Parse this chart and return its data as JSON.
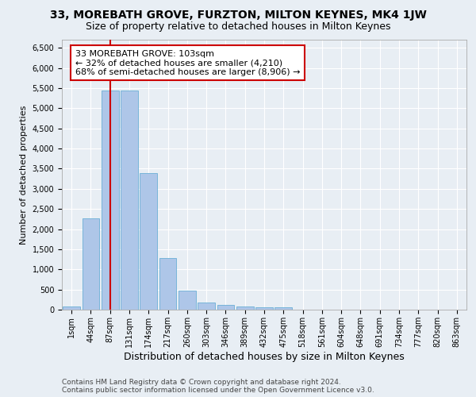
{
  "title_line1": "33, MOREBATH GROVE, FURZTON, MILTON KEYNES, MK4 1JW",
  "title_line2": "Size of property relative to detached houses in Milton Keynes",
  "xlabel": "Distribution of detached houses by size in Milton Keynes",
  "ylabel": "Number of detached properties",
  "footnote1": "Contains HM Land Registry data © Crown copyright and database right 2024.",
  "footnote2": "Contains public sector information licensed under the Open Government Licence v3.0.",
  "bar_labels": [
    "1sqm",
    "44sqm",
    "87sqm",
    "131sqm",
    "174sqm",
    "217sqm",
    "260sqm",
    "303sqm",
    "346sqm",
    "389sqm",
    "432sqm",
    "475sqm",
    "518sqm",
    "561sqm",
    "604sqm",
    "648sqm",
    "691sqm",
    "734sqm",
    "777sqm",
    "820sqm",
    "863sqm"
  ],
  "bar_values": [
    70,
    2270,
    5440,
    5440,
    3380,
    1290,
    480,
    175,
    110,
    80,
    55,
    55,
    0,
    0,
    0,
    0,
    0,
    0,
    0,
    0,
    0
  ],
  "bar_color": "#aec6e8",
  "bar_edge_color": "#6aaed6",
  "highlight_bin_index": 2,
  "red_line_color": "#cc0000",
  "annotation_text": "33 MOREBATH GROVE: 103sqm\n← 32% of detached houses are smaller (4,210)\n68% of semi-detached houses are larger (8,906) →",
  "annotation_box_color": "#cc0000",
  "bg_color": "#e8eef4",
  "plot_bg_color": "#e8eef4",
  "ylim": [
    0,
    6700
  ],
  "yticks": [
    0,
    500,
    1000,
    1500,
    2000,
    2500,
    3000,
    3500,
    4000,
    4500,
    5000,
    5500,
    6000,
    6500
  ],
  "grid_color": "#ffffff",
  "title1_fontsize": 10,
  "title2_fontsize": 9,
  "xlabel_fontsize": 9,
  "ylabel_fontsize": 8,
  "tick_fontsize": 7,
  "annotation_fontsize": 8,
  "footnote_fontsize": 6.5
}
